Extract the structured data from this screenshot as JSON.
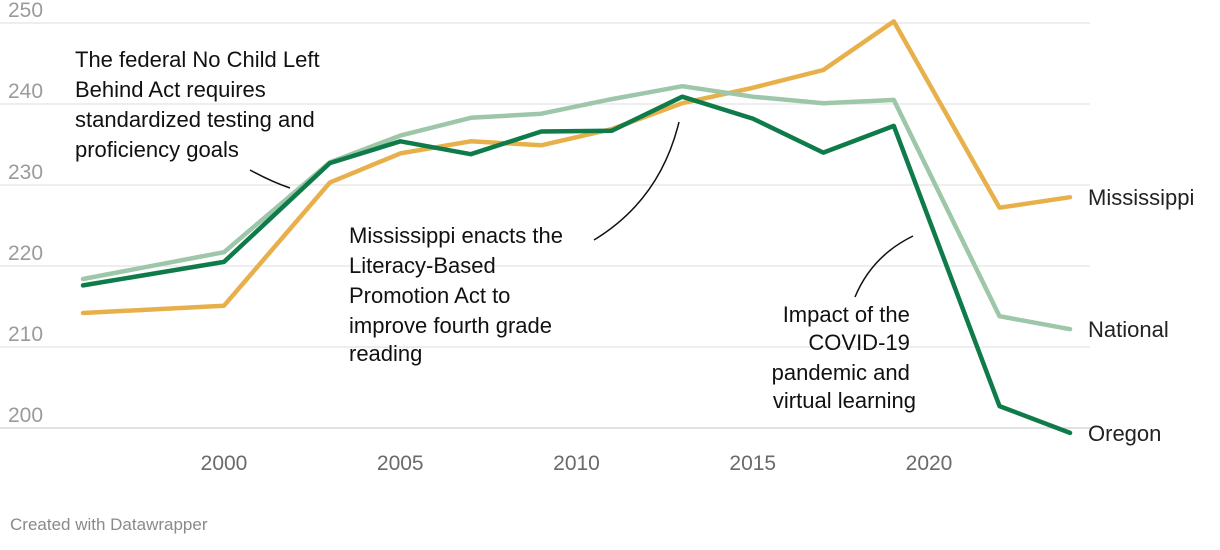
{
  "chart_data": {
    "type": "line",
    "title": "",
    "xlabel": "",
    "ylabel": "",
    "ylim": [
      197,
      252
    ],
    "xlim": [
      1995.5,
      2024.6
    ],
    "yticks": [
      200,
      210,
      220,
      230,
      240,
      250
    ],
    "xticks": [
      2000,
      2005,
      2010,
      2015,
      2020
    ],
    "grid": true,
    "series": [
      {
        "name": "Mississippi",
        "color": "#e8b04a",
        "x": [
          1996,
          2000,
          2003,
          2005,
          2007,
          2009,
          2011,
          2013,
          2015,
          2017,
          2019,
          2022,
          2024
        ],
        "values": [
          214.2,
          215.1,
          230.3,
          233.9,
          235.4,
          234.9,
          236.9,
          240.1,
          242.0,
          244.2,
          250.2,
          227.2,
          228.5
        ]
      },
      {
        "name": "National",
        "color": "#9dc7a8",
        "x": [
          1996,
          2000,
          2003,
          2005,
          2007,
          2009,
          2011,
          2013,
          2015,
          2017,
          2019,
          2022,
          2024
        ],
        "values": [
          218.4,
          221.7,
          232.8,
          236.1,
          238.3,
          238.8,
          240.6,
          242.2,
          240.9,
          240.1,
          240.5,
          213.8,
          212.2
        ]
      },
      {
        "name": "Oregon",
        "color": "#0f7b4a",
        "x": [
          1996,
          2000,
          2003,
          2005,
          2007,
          2009,
          2011,
          2013,
          2015,
          2017,
          2019,
          2022,
          2024
        ],
        "values": [
          217.6,
          220.5,
          232.7,
          235.4,
          233.8,
          236.6,
          236.7,
          240.9,
          238.2,
          234.0,
          237.3,
          202.7,
          199.4
        ]
      }
    ],
    "annotations": [
      {
        "lines": [
          "The federal No Child Left",
          "Behind Act requires",
          "standardized testing and",
          "proficiency goals"
        ]
      },
      {
        "lines": [
          "Mississippi enacts the",
          "Literacy-Based",
          "Promotion Act to",
          "improve fourth grade",
          "reading"
        ]
      },
      {
        "lines": [
          "Impact of the",
          "COVID-19",
          "pandemic and",
          "virtual learning"
        ]
      }
    ],
    "credit": "Created with Datawrapper"
  }
}
